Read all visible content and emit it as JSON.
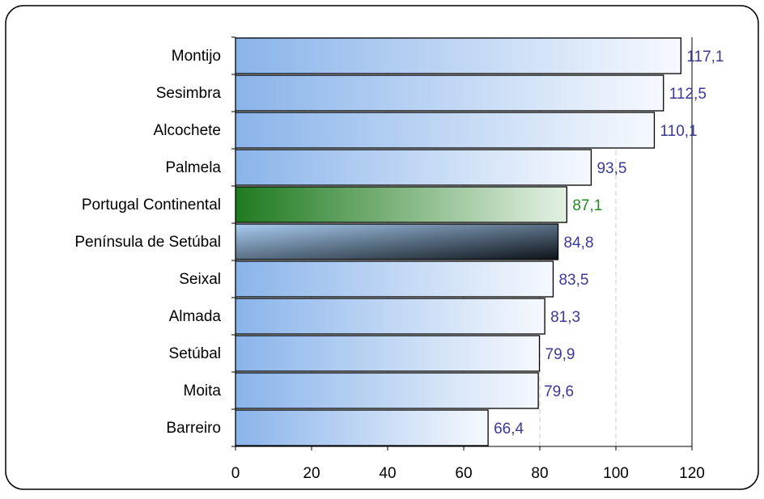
{
  "chart_data": {
    "type": "bar",
    "orientation": "horizontal",
    "categories": [
      "Montijo",
      "Sesimbra",
      "Alcochete",
      "Palmela",
      "Portugal Continental",
      "Península de Setúbal",
      "Seixal",
      "Almada",
      "Setúbal",
      "Moita",
      "Barreiro"
    ],
    "values": [
      117.1,
      112.5,
      110.1,
      93.5,
      87.1,
      84.8,
      83.5,
      81.3,
      79.9,
      79.6,
      66.4
    ],
    "value_labels": [
      "117,1",
      "112,5",
      "110,1",
      "93,5",
      "87,1",
      "84,8",
      "83,5",
      "81,3",
      "79,9",
      "79,6",
      "66,4"
    ],
    "colors": [
      [
        "#8ab4ea",
        "#f6f9fe"
      ],
      [
        "#8ab4ea",
        "#f6f9fe"
      ],
      [
        "#8ab4ea",
        "#f6f9fe"
      ],
      [
        "#8ab4ea",
        "#f6f9fe"
      ],
      [
        "#1f7a1f",
        "#e4f1e4"
      ],
      [
        "#a9cdf2",
        "#0c1218"
      ],
      [
        "#8ab4ea",
        "#f6f9fe"
      ],
      [
        "#8ab4ea",
        "#f6f9fe"
      ],
      [
        "#8ab4ea",
        "#f6f9fe"
      ],
      [
        "#8ab4ea",
        "#f6f9fe"
      ],
      [
        "#8ab4ea",
        "#f6f9fe"
      ]
    ],
    "value_label_colors": [
      "#3a3a96",
      "#3a3a96",
      "#3a3a96",
      "#3a3a96",
      "#1e8c1e",
      "#3a3a96",
      "#3a3a96",
      "#3a3a96",
      "#3a3a96",
      "#3a3a96",
      "#3a3a96"
    ],
    "xlim": [
      0,
      120
    ],
    "xticks": [
      0,
      20,
      40,
      60,
      80,
      100,
      120
    ],
    "grid": true
  }
}
